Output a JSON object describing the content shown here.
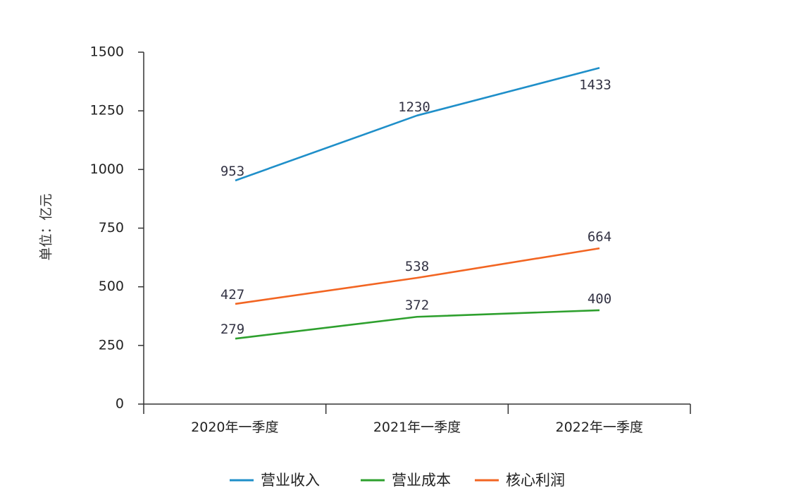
{
  "chart_data": {
    "type": "line",
    "ylabel": "单位：亿元",
    "categories": [
      "2020年一季度",
      "2021年一季度",
      "2022年一季度"
    ],
    "ylim": [
      0,
      1500
    ],
    "yticks": [
      0,
      250,
      500,
      750,
      1000,
      1250,
      1500
    ],
    "grid": false,
    "legend_position": "bottom",
    "series": [
      {
        "name": "营业收入",
        "values": [
          953,
          1230,
          1433
        ],
        "color": "#1f8fc9"
      },
      {
        "name": "营业成本",
        "values": [
          279,
          372,
          400
        ],
        "color": "#2ea02e"
      },
      {
        "name": "核心利润",
        "values": [
          427,
          538,
          664
        ],
        "color": "#f26522"
      }
    ]
  }
}
